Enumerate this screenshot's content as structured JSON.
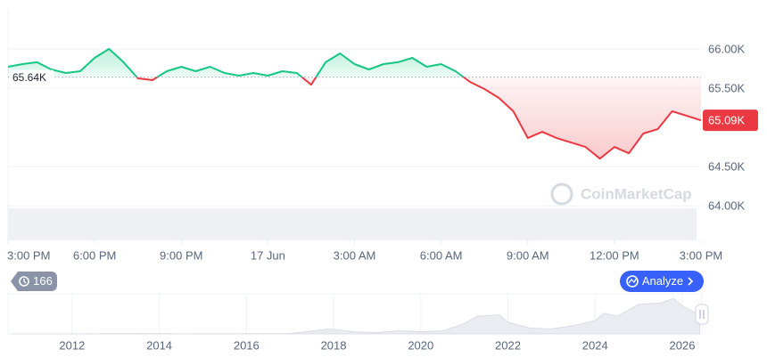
{
  "chart_data": {
    "type": "line",
    "x": [
      0,
      0.5,
      1,
      1.5,
      2,
      2.5,
      3,
      3.5,
      4,
      4.5,
      5,
      5.5,
      6,
      6.5,
      7,
      7.5,
      8,
      8.5,
      9,
      9.5,
      10,
      10.5,
      11,
      11.5,
      12,
      12.5,
      13,
      13.5,
      14,
      14.5,
      15,
      15.5,
      16,
      16.5,
      17,
      17.5,
      18,
      18.5,
      19,
      19.5,
      20,
      20.5,
      21,
      21.5,
      22,
      22.5,
      23,
      23.5,
      24
    ],
    "series": [
      {
        "values": [
          65773,
          65807,
          65830,
          65739,
          65693,
          65716,
          65886,
          66000,
          65830,
          65625,
          65602,
          65716,
          65773,
          65716,
          65773,
          65693,
          65659,
          65693,
          65659,
          65716,
          65693,
          65545,
          65830,
          65943,
          65807,
          65739,
          65807,
          65830,
          65886,
          65773,
          65807,
          65716,
          65580,
          65489,
          65375,
          65205,
          64864,
          64943,
          64864,
          64807,
          64750,
          64602,
          64750,
          64670,
          64921,
          64977,
          65205,
          65148,
          65090
        ],
        "color_up": "#16c784",
        "color_down": "#ea3943"
      }
    ],
    "xlim": [
      0,
      24
    ],
    "xticks": [
      {
        "value": 0,
        "label": "3:00 PM"
      },
      {
        "value": 3,
        "label": "6:00 PM"
      },
      {
        "value": 6,
        "label": "9:00 PM"
      },
      {
        "value": 9,
        "label": "17 Jun"
      },
      {
        "value": 12,
        "label": "3:00 AM"
      },
      {
        "value": 15,
        "label": "6:00 AM"
      },
      {
        "value": 18,
        "label": "9:00 AM"
      },
      {
        "value": 21,
        "label": "12:00 PM"
      },
      {
        "value": 24,
        "label": "3:00 PM"
      }
    ],
    "ylim": [
      63560,
      66510
    ],
    "yticks": [
      {
        "value": 66000,
        "label": "66.00K"
      },
      {
        "value": 65500,
        "label": "65.50K"
      },
      {
        "value": 64500,
        "label": "64.50K"
      },
      {
        "value": 64000,
        "label": "64.00K"
      }
    ],
    "grid": true,
    "baseline": {
      "value": 65640,
      "label": "65.64K"
    },
    "last_price": {
      "value": 65090,
      "label": "65.09K"
    },
    "watermark": "CoinMarketCap",
    "history_count": 166,
    "button": "Analyze",
    "navigator": {
      "x": [
        2010.6,
        2012,
        2013,
        2014,
        2015,
        2016,
        2017,
        2017.9,
        2018.5,
        2019,
        2019.5,
        2020,
        2020.5,
        2021,
        2021.3,
        2021.8,
        2022,
        2022.5,
        2023,
        2023.5,
        2024,
        2024.2,
        2024.5,
        2025,
        2025.5,
        2025.8,
        2026,
        2026.4
      ],
      "values": [
        0,
        0,
        0.8,
        0.5,
        0.3,
        0.5,
        1,
        17,
        7,
        4,
        11,
        7,
        10,
        35,
        60,
        65,
        40,
        20,
        17,
        28,
        45,
        70,
        60,
        100,
        105,
        120,
        95,
        65
      ],
      "xlim": [
        2010.53,
        2026.43
      ],
      "ylim": [
        0,
        130
      ],
      "xticks": [
        2012,
        2014,
        2016,
        2018,
        2020,
        2022,
        2024,
        2026
      ]
    }
  }
}
